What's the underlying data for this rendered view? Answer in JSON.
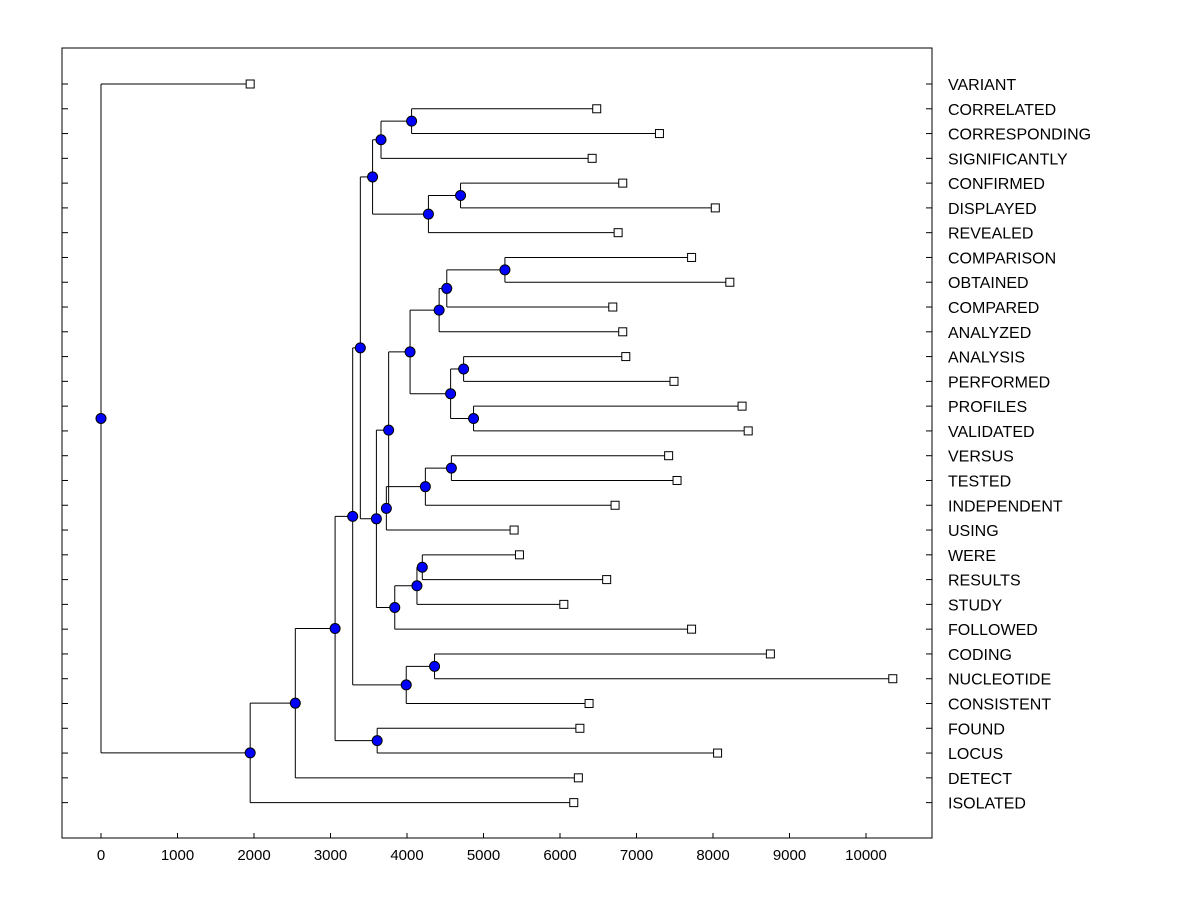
{
  "chart_data": {
    "type": "dendrogram",
    "title": "",
    "xlabel": "",
    "ylabel": "",
    "xlim": [
      -500,
      10850
    ],
    "xticks": [
      0,
      1000,
      2000,
      3000,
      4000,
      5000,
      6000,
      7000,
      8000,
      9000,
      10000
    ],
    "grid": false,
    "legend": "none",
    "colors": {
      "node_fill": "#0000ff",
      "line": "#000000",
      "leaf_fill": "#ffffff"
    },
    "leaves": [
      {
        "label": "VARIANT",
        "x": 1950
      },
      {
        "label": "CORRELATED",
        "x": 6480
      },
      {
        "label": "CORRESPONDING",
        "x": 7300
      },
      {
        "label": "SIGNIFICANTLY",
        "x": 6420
      },
      {
        "label": "CONFIRMED",
        "x": 6820
      },
      {
        "label": "DISPLAYED",
        "x": 8030
      },
      {
        "label": "REVEALED",
        "x": 6760
      },
      {
        "label": "COMPARISON",
        "x": 7720
      },
      {
        "label": "OBTAINED",
        "x": 8220
      },
      {
        "label": "COMPARED",
        "x": 6690
      },
      {
        "label": "ANALYZED",
        "x": 6820
      },
      {
        "label": "ANALYSIS",
        "x": 6860
      },
      {
        "label": "PERFORMED",
        "x": 7490
      },
      {
        "label": "PROFILES",
        "x": 8380
      },
      {
        "label": "VALIDATED",
        "x": 8460
      },
      {
        "label": "VERSUS",
        "x": 7420
      },
      {
        "label": "TESTED",
        "x": 7530
      },
      {
        "label": "INDEPENDENT",
        "x": 6720
      },
      {
        "label": "USING",
        "x": 5400
      },
      {
        "label": "WERE",
        "x": 5470
      },
      {
        "label": "RESULTS",
        "x": 6610
      },
      {
        "label": "STUDY",
        "x": 6050
      },
      {
        "label": "FOLLOWED",
        "x": 7720
      },
      {
        "label": "CODING",
        "x": 8750
      },
      {
        "label": "NUCLEOTIDE",
        "x": 10350
      },
      {
        "label": "CONSISTENT",
        "x": 6380
      },
      {
        "label": "FOUND",
        "x": 6260
      },
      {
        "label": "LOCUS",
        "x": 8060
      },
      {
        "label": "DETECT",
        "x": 6240
      },
      {
        "label": "ISOLATED",
        "x": 6180
      }
    ],
    "merges": [
      {
        "id": "n1",
        "x": 4060,
        "children": [
          "L1",
          "L2"
        ]
      },
      {
        "id": "n2",
        "x": 3660,
        "children": [
          "n1",
          "L3"
        ]
      },
      {
        "id": "n3",
        "x": 4700,
        "children": [
          "L4",
          "L5"
        ]
      },
      {
        "id": "n4",
        "x": 4280,
        "children": [
          "n3",
          "L6"
        ]
      },
      {
        "id": "n5",
        "x": 3550,
        "children": [
          "n2",
          "n4"
        ]
      },
      {
        "id": "n6",
        "x": 5280,
        "children": [
          "L7",
          "L8"
        ]
      },
      {
        "id": "n7",
        "x": 4520,
        "children": [
          "n6",
          "L9"
        ]
      },
      {
        "id": "n8",
        "x": 4420,
        "children": [
          "n7",
          "L10"
        ]
      },
      {
        "id": "n9",
        "x": 4740,
        "children": [
          "L11",
          "L12"
        ]
      },
      {
        "id": "n10",
        "x": 4870,
        "children": [
          "L13",
          "L14"
        ]
      },
      {
        "id": "n11",
        "x": 4570,
        "children": [
          "n9",
          "n10"
        ]
      },
      {
        "id": "n12",
        "x": 4040,
        "children": [
          "n8",
          "n11"
        ]
      },
      {
        "id": "n13",
        "x": 4580,
        "children": [
          "L15",
          "L16"
        ]
      },
      {
        "id": "n14",
        "x": 4240,
        "children": [
          "n13",
          "L17"
        ]
      },
      {
        "id": "n15",
        "x": 3730,
        "children": [
          "n14",
          "L18"
        ]
      },
      {
        "id": "n16",
        "x": 3760,
        "children": [
          "n12",
          "n15"
        ]
      },
      {
        "id": "n17",
        "x": 4200,
        "children": [
          "L19",
          "L20"
        ]
      },
      {
        "id": "n18",
        "x": 4130,
        "children": [
          "n17",
          "L21"
        ]
      },
      {
        "id": "n19",
        "x": 3840,
        "children": [
          "n18",
          "L22"
        ]
      },
      {
        "id": "n20",
        "x": 3600,
        "children": [
          "n16",
          "n19"
        ]
      },
      {
        "id": "n21",
        "x": 3390,
        "children": [
          "n5",
          "n20"
        ]
      },
      {
        "id": "n22",
        "x": 4360,
        "children": [
          "L23",
          "L24"
        ]
      },
      {
        "id": "n23",
        "x": 3990,
        "children": [
          "n22",
          "L25"
        ]
      },
      {
        "id": "n24",
        "x": 3290,
        "children": [
          "n21",
          "n23"
        ]
      },
      {
        "id": "n25",
        "x": 3610,
        "children": [
          "L26",
          "L27"
        ]
      },
      {
        "id": "n26",
        "x": 3060,
        "children": [
          "n24",
          "n25"
        ]
      },
      {
        "id": "n27",
        "x": 2540,
        "children": [
          "n26",
          "L28"
        ]
      },
      {
        "id": "n28",
        "x": 1950,
        "children": [
          "n27",
          "L29"
        ]
      },
      {
        "id": "n29",
        "x": 0,
        "children": [
          "L0",
          "n28"
        ]
      }
    ]
  }
}
